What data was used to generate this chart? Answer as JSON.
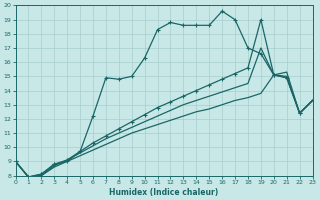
{
  "xlabel": "Humidex (Indice chaleur)",
  "bg_color": "#c8e8e8",
  "grid_color": "#a8cccc",
  "line_color": "#1a6666",
  "xlim": [
    0,
    23
  ],
  "ylim": [
    8,
    20
  ],
  "xticks": [
    0,
    1,
    2,
    3,
    4,
    5,
    6,
    7,
    8,
    9,
    10,
    11,
    12,
    13,
    14,
    15,
    16,
    17,
    18,
    19,
    20,
    21,
    22,
    23
  ],
  "yticks": [
    8,
    9,
    10,
    11,
    12,
    13,
    14,
    15,
    16,
    17,
    18,
    19,
    20
  ],
  "series": [
    {
      "x": [
        0,
        1,
        2,
        3,
        4,
        5,
        6,
        7,
        8,
        9,
        10,
        11,
        12,
        13,
        14,
        15,
        16,
        17,
        18,
        19,
        20,
        21,
        22,
        23
      ],
      "y": [
        9.0,
        7.9,
        8.0,
        8.6,
        9.0,
        9.4,
        9.8,
        10.2,
        10.6,
        11.0,
        11.3,
        11.6,
        11.9,
        12.2,
        12.5,
        12.7,
        13.0,
        13.3,
        13.5,
        13.8,
        15.1,
        15.3,
        12.4,
        13.3
      ],
      "marker": false,
      "lw": 0.9
    },
    {
      "x": [
        0,
        1,
        2,
        3,
        4,
        5,
        6,
        7,
        8,
        9,
        10,
        11,
        12,
        13,
        14,
        15,
        16,
        17,
        18,
        19,
        20,
        21,
        22,
        23
      ],
      "y": [
        9.0,
        7.9,
        8.0,
        8.7,
        9.1,
        9.6,
        10.1,
        10.6,
        11.0,
        11.4,
        11.8,
        12.2,
        12.6,
        13.0,
        13.3,
        13.6,
        13.9,
        14.2,
        14.5,
        17.0,
        15.1,
        15.0,
        12.4,
        13.3
      ],
      "marker": false,
      "lw": 0.9
    },
    {
      "x": [
        0,
        1,
        2,
        3,
        4,
        5,
        6,
        7,
        8,
        9,
        10,
        11,
        12,
        13,
        14,
        15,
        16,
        17,
        18,
        19,
        20,
        21,
        22,
        23
      ],
      "y": [
        9.0,
        7.9,
        8.1,
        8.8,
        9.0,
        9.7,
        12.2,
        14.9,
        14.8,
        15.0,
        16.3,
        18.3,
        18.8,
        18.6,
        18.6,
        18.6,
        19.6,
        19.0,
        17.0,
        16.6,
        15.1,
        14.9,
        12.4,
        13.3
      ],
      "marker": true,
      "lw": 0.9
    },
    {
      "x": [
        0,
        1,
        2,
        3,
        4,
        5,
        6,
        7,
        8,
        9,
        10,
        11,
        12,
        13,
        14,
        15,
        16,
        17,
        18,
        19,
        20,
        21,
        22,
        23
      ],
      "y": [
        9.0,
        7.9,
        8.1,
        8.8,
        9.1,
        9.7,
        10.3,
        10.8,
        11.3,
        11.8,
        12.3,
        12.8,
        13.2,
        13.6,
        14.0,
        14.4,
        14.8,
        15.2,
        15.6,
        19.0,
        15.1,
        14.9,
        12.4,
        13.3
      ],
      "marker": true,
      "lw": 0.9
    }
  ]
}
